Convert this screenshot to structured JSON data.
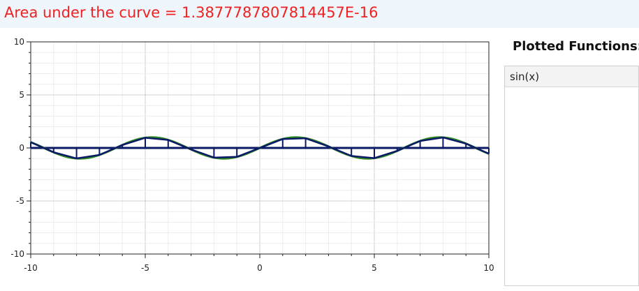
{
  "header": {
    "area_text": "Area under the curve = 1.3877787807814457E-16"
  },
  "sidebar": {
    "title": "Plotted Functions:",
    "functions": [
      "sin(x)"
    ]
  },
  "chart_data": {
    "type": "line",
    "function": "sin(x)",
    "xlim": [
      -10,
      10
    ],
    "ylim": [
      -10,
      10
    ],
    "x_ticks": [
      -10,
      -5,
      0,
      5,
      10
    ],
    "y_ticks": [
      10,
      5,
      0,
      -5,
      -10
    ],
    "x_tick_labels": [
      "-10",
      "-5",
      "0",
      "5",
      "10"
    ],
    "y_tick_labels": [
      "10",
      "5",
      "0",
      "-5",
      "-10"
    ],
    "grid": true,
    "riemann_step": 1,
    "series": [
      {
        "color": "#2e8b22"
      }
    ],
    "approximation_color": "#0b1a66"
  }
}
